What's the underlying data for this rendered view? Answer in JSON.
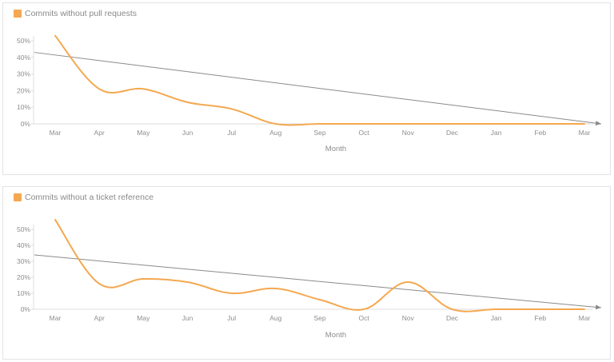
{
  "colors": {
    "series": "#f4a850",
    "trend": "#8a8a8a",
    "axis": "#dedede"
  },
  "chart_data": [
    {
      "type": "line",
      "title": "Commits without pull requests",
      "legend": "Commits without pull requests",
      "xlabel": "Month",
      "ylabel": "",
      "categories": [
        "Mar",
        "Apr",
        "May",
        "Jun",
        "Jul",
        "Aug",
        "Sep",
        "Oct",
        "Nov",
        "Dec",
        "Jan",
        "Feb",
        "Mar"
      ],
      "series": [
        {
          "name": "Commits without pull requests",
          "values": [
            53,
            21,
            21,
            13,
            9,
            0,
            0,
            0,
            0,
            0,
            0,
            0,
            0
          ]
        }
      ],
      "trend_line": {
        "start": 43,
        "end": 0
      },
      "yticks": [
        0,
        10,
        20,
        30,
        40,
        50
      ],
      "ytick_labels": [
        "0%",
        "10%",
        "20%",
        "30%",
        "40%",
        "50%"
      ],
      "ylim": [
        0,
        50
      ]
    },
    {
      "type": "line",
      "title": "Commits without a ticket reference",
      "legend": "Commits without a ticket reference",
      "xlabel": "Month",
      "ylabel": "",
      "categories": [
        "Mar",
        "Apr",
        "May",
        "Jun",
        "Jul",
        "Aug",
        "Sep",
        "Oct",
        "Nov",
        "Dec",
        "Jan",
        "Feb",
        "Mar"
      ],
      "series": [
        {
          "name": "Commits without a ticket reference",
          "values": [
            56,
            16,
            19,
            17,
            10,
            13,
            6,
            0,
            17,
            0,
            0,
            0,
            0
          ]
        }
      ],
      "trend_line": {
        "start": 34,
        "end": 1
      },
      "yticks": [
        0,
        10,
        20,
        30,
        40,
        50
      ],
      "ytick_labels": [
        "0%",
        "10%",
        "20%",
        "30%",
        "40%",
        "50%"
      ],
      "ylim": [
        0,
        50
      ]
    }
  ]
}
